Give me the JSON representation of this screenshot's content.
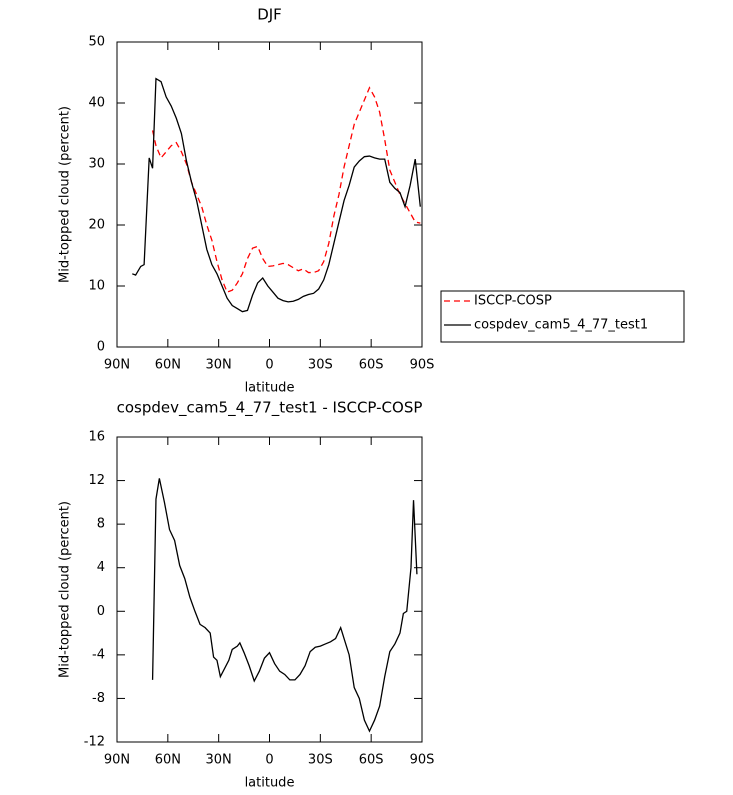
{
  "chart_data": [
    {
      "type": "line",
      "title": "DJF",
      "xlabel": "latitude",
      "ylabel": "Mid-topped cloud (percent)",
      "xlim": [
        90,
        -90
      ],
      "xticks": [
        {
          "value": 90,
          "label": "90N"
        },
        {
          "value": 60,
          "label": "60N"
        },
        {
          "value": 30,
          "label": "30N"
        },
        0,
        {
          "value": -30,
          "label": "30S"
        },
        {
          "value": -60,
          "label": "60S"
        },
        {
          "value": -90,
          "label": "90S"
        }
      ],
      "ylim": [
        0,
        50
      ],
      "yticks": [
        0,
        10,
        20,
        30,
        40,
        50
      ],
      "legend": "right",
      "series": [
        {
          "name": "ISCCP-COSP",
          "color": "#ff0000",
          "line_style": "dashed",
          "x": [
            69,
            67,
            64,
            61,
            58,
            55,
            52,
            49,
            46,
            43,
            40,
            37,
            34,
            31,
            28,
            25,
            22,
            19,
            16,
            13,
            10,
            7,
            4,
            1,
            -2,
            -5,
            -8,
            -11,
            -14,
            -17,
            -20,
            -23,
            -26,
            -29,
            -32,
            -35,
            -38,
            -41,
            -44,
            -47,
            -50,
            -53,
            -56,
            -59,
            -62,
            -65,
            -68,
            -71,
            -74,
            -77,
            -80,
            -83,
            -86,
            -89
          ],
          "values": [
            35.5,
            33,
            31,
            32,
            33,
            33.5,
            32,
            30,
            27,
            25,
            23,
            20,
            17.5,
            14,
            11,
            9,
            9.3,
            10.5,
            12,
            14.5,
            16.2,
            16.5,
            14.5,
            13.2,
            13.3,
            13.5,
            13.7,
            13.5,
            13,
            12.5,
            12.8,
            12.2,
            12.2,
            12.5,
            14,
            17,
            21.5,
            25,
            29.5,
            33,
            36.5,
            38.5,
            40.5,
            42.5,
            41,
            38.5,
            34,
            29,
            27,
            25,
            23.5,
            22,
            20.5,
            20.3
          ]
        },
        {
          "name": "cospdev_cam5_4_77_test1",
          "color": "#000000",
          "line_style": "solid",
          "x": [
            81,
            79,
            76,
            74,
            71,
            69,
            67,
            64,
            61,
            58,
            55,
            52,
            49,
            46,
            43,
            40,
            37,
            34,
            31,
            28,
            25,
            22,
            19,
            16,
            13,
            10,
            7,
            4,
            1,
            -2,
            -5,
            -8,
            -11,
            -14,
            -17,
            -20,
            -23,
            -26,
            -29,
            -32,
            -35,
            -38,
            -41,
            -44,
            -47,
            -50,
            -53,
            -56,
            -59,
            -62,
            -65,
            -68,
            -71,
            -74,
            -77,
            -80,
            -83,
            -86,
            -89
          ],
          "values": [
            12,
            11.8,
            13.2,
            13.5,
            31,
            29.3,
            44,
            43.5,
            41,
            39.5,
            37.5,
            35,
            30.5,
            27,
            24,
            20,
            16,
            13.5,
            12,
            10,
            8,
            6.8,
            6.3,
            5.8,
            6,
            8.5,
            10.5,
            11.3,
            10,
            9,
            8,
            7.6,
            7.4,
            7.5,
            7.8,
            8.3,
            8.6,
            8.8,
            9.5,
            11,
            13.5,
            17,
            20.5,
            24,
            26.5,
            29.5,
            30.5,
            31.2,
            31.3,
            31,
            30.8,
            30.8,
            27,
            26,
            25.3,
            23,
            26.5,
            30.8,
            23
          ]
        }
      ]
    },
    {
      "type": "line",
      "title": "cospdev_cam5_4_77_test1 - ISCCP-COSP",
      "xlabel": "latitude",
      "ylabel": "Mid-topped cloud (percent)",
      "xlim": [
        90,
        -90
      ],
      "xticks": [
        {
          "value": 90,
          "label": "90N"
        },
        {
          "value": 60,
          "label": "60N"
        },
        {
          "value": 30,
          "label": "30N"
        },
        0,
        {
          "value": -30,
          "label": "30S"
        },
        {
          "value": -60,
          "label": "60S"
        },
        {
          "value": -90,
          "label": "90S"
        }
      ],
      "ylim": [
        -12,
        16
      ],
      "yticks": [
        -12,
        -8,
        -4,
        0,
        4,
        8,
        12,
        16
      ],
      "series": [
        {
          "color": "#000000",
          "line_style": "solid",
          "x": [
            69,
            67,
            65,
            62,
            59,
            56,
            53,
            50,
            47,
            44,
            41,
            38,
            35,
            33,
            31,
            29,
            24,
            22,
            19,
            17.5,
            15,
            12,
            9,
            6,
            3,
            0,
            -3,
            -6,
            -9,
            -12,
            -15,
            -18,
            -21,
            -24,
            -27,
            -30,
            -33,
            -36,
            -39,
            -42,
            -44,
            -47,
            -50,
            -53,
            -56,
            -59,
            -62,
            -65,
            -68,
            -71,
            -74,
            -77,
            -79,
            -81,
            -83.5,
            -85,
            -87
          ],
          "values": [
            -6.3,
            10.3,
            12.2,
            10,
            7.5,
            6.5,
            4.2,
            3,
            1.3,
            0,
            -1.2,
            -1.5,
            -2,
            -4.2,
            -4.5,
            -6,
            -4.5,
            -3.5,
            -3.2,
            -2.9,
            -3.8,
            -5,
            -6.4,
            -5.5,
            -4.3,
            -3.8,
            -4.8,
            -5.5,
            -5.8,
            -6.3,
            -6.3,
            -5.8,
            -5,
            -3.7,
            -3.3,
            -3.2,
            -3,
            -2.8,
            -2.5,
            -1.5,
            -2.5,
            -4,
            -7,
            -8,
            -10,
            -11,
            -10,
            -8.7,
            -6,
            -3.7,
            -3,
            -2,
            -0.2,
            0,
            4,
            10.2,
            3.4
          ]
        }
      ]
    }
  ]
}
